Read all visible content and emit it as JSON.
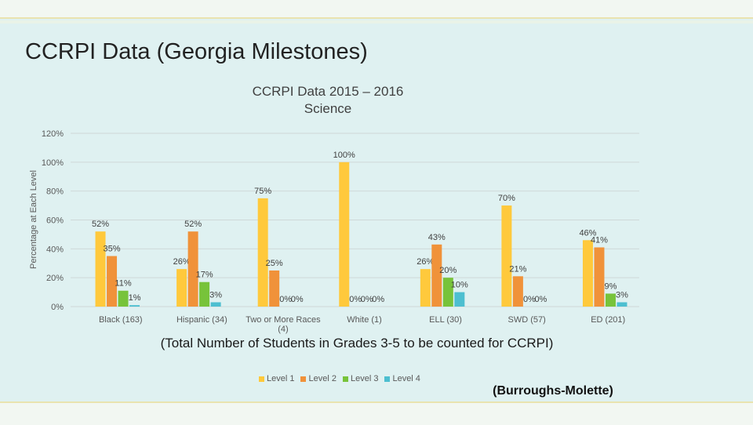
{
  "slide": {
    "title": "CCRPI Data (Georgia Milestones)",
    "subtitle": "(Total Number of Students in Grades 3-5 to be counted for CCRPI)",
    "credit": "(Burroughs-Molette)"
  },
  "chart_data": {
    "type": "bar",
    "title_line1": "CCRPI Data 2015 – 2016",
    "title_line2": "Science",
    "ylabel": "Percentage at Each Level",
    "xlabel": "",
    "ylim": [
      0,
      120
    ],
    "y_ticks": [
      "0%",
      "20%",
      "40%",
      "60%",
      "80%",
      "100%",
      "120%"
    ],
    "grid": true,
    "legend_position": "bottom",
    "categories": [
      "Black (163)",
      "Hispanic (34)",
      "Two or More Races (4)",
      "White (1)",
      "ELL (30)",
      "SWD (57)",
      "ED (201)"
    ],
    "series": [
      {
        "name": "Level 1",
        "color": "#ffc93c",
        "values": [
          52,
          26,
          75,
          100,
          26,
          70,
          46
        ],
        "labels": [
          "52%",
          "26%",
          "75%",
          "100%",
          "26%",
          "70%",
          "46%"
        ]
      },
      {
        "name": "Level 2",
        "color": "#f0923a",
        "values": [
          35,
          52,
          25,
          0,
          43,
          21,
          41
        ],
        "labels": [
          "35%",
          "52%",
          "25%",
          "0%",
          "43%",
          "21%",
          "41%"
        ]
      },
      {
        "name": "Level 3",
        "color": "#77c33a",
        "values": [
          11,
          17,
          0,
          0,
          20,
          0,
          9
        ],
        "labels": [
          "11%",
          "17%",
          "0%",
          "0%",
          "20%",
          "0%",
          "9%"
        ]
      },
      {
        "name": "Level 4",
        "color": "#4dbfd0",
        "values": [
          1,
          3,
          0,
          0,
          10,
          0,
          3
        ],
        "labels": [
          "1%",
          "3%",
          "0%",
          "0%",
          "10%",
          "0%",
          "3%"
        ]
      }
    ]
  }
}
